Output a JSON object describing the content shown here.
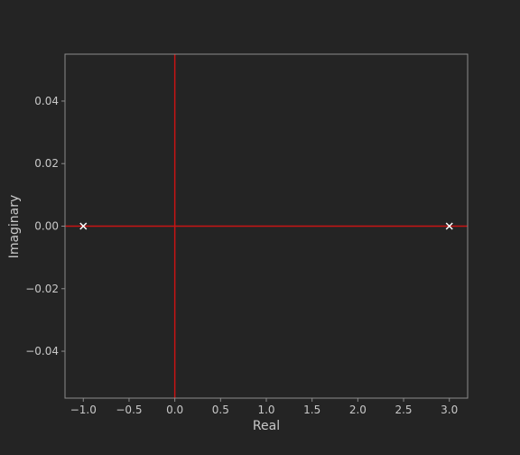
{
  "colors": {
    "background": "#242424",
    "frame": "#8c8c8c",
    "text": "#c8c8c8",
    "reference_lines": "#c81414",
    "markers": "#ffffff"
  },
  "chart_data": {
    "type": "scatter",
    "title": "",
    "xlabel": "Real",
    "ylabel": "Imaginary",
    "xlim": [
      -1.2,
      3.2
    ],
    "ylim": [
      -0.055,
      0.055
    ],
    "grid": false,
    "marker": "x",
    "x_ticks": [
      -1.0,
      -0.5,
      0.0,
      0.5,
      1.0,
      1.5,
      2.0,
      2.5,
      3.0
    ],
    "x_tick_labels": [
      "−1.0",
      "−0.5",
      "0.0",
      "0.5",
      "1.0",
      "1.5",
      "2.0",
      "2.5",
      "3.0"
    ],
    "y_ticks": [
      0.04,
      0.02,
      0.0,
      -0.02,
      -0.04
    ],
    "y_tick_labels": [
      "0.04",
      "0.02",
      "0.00",
      "−0.02",
      "−0.04"
    ],
    "reference_lines": {
      "x": 0,
      "y": 0
    },
    "points": [
      {
        "x": -1.0,
        "y": 0.0
      },
      {
        "x": 3.0,
        "y": 0.0
      }
    ]
  }
}
